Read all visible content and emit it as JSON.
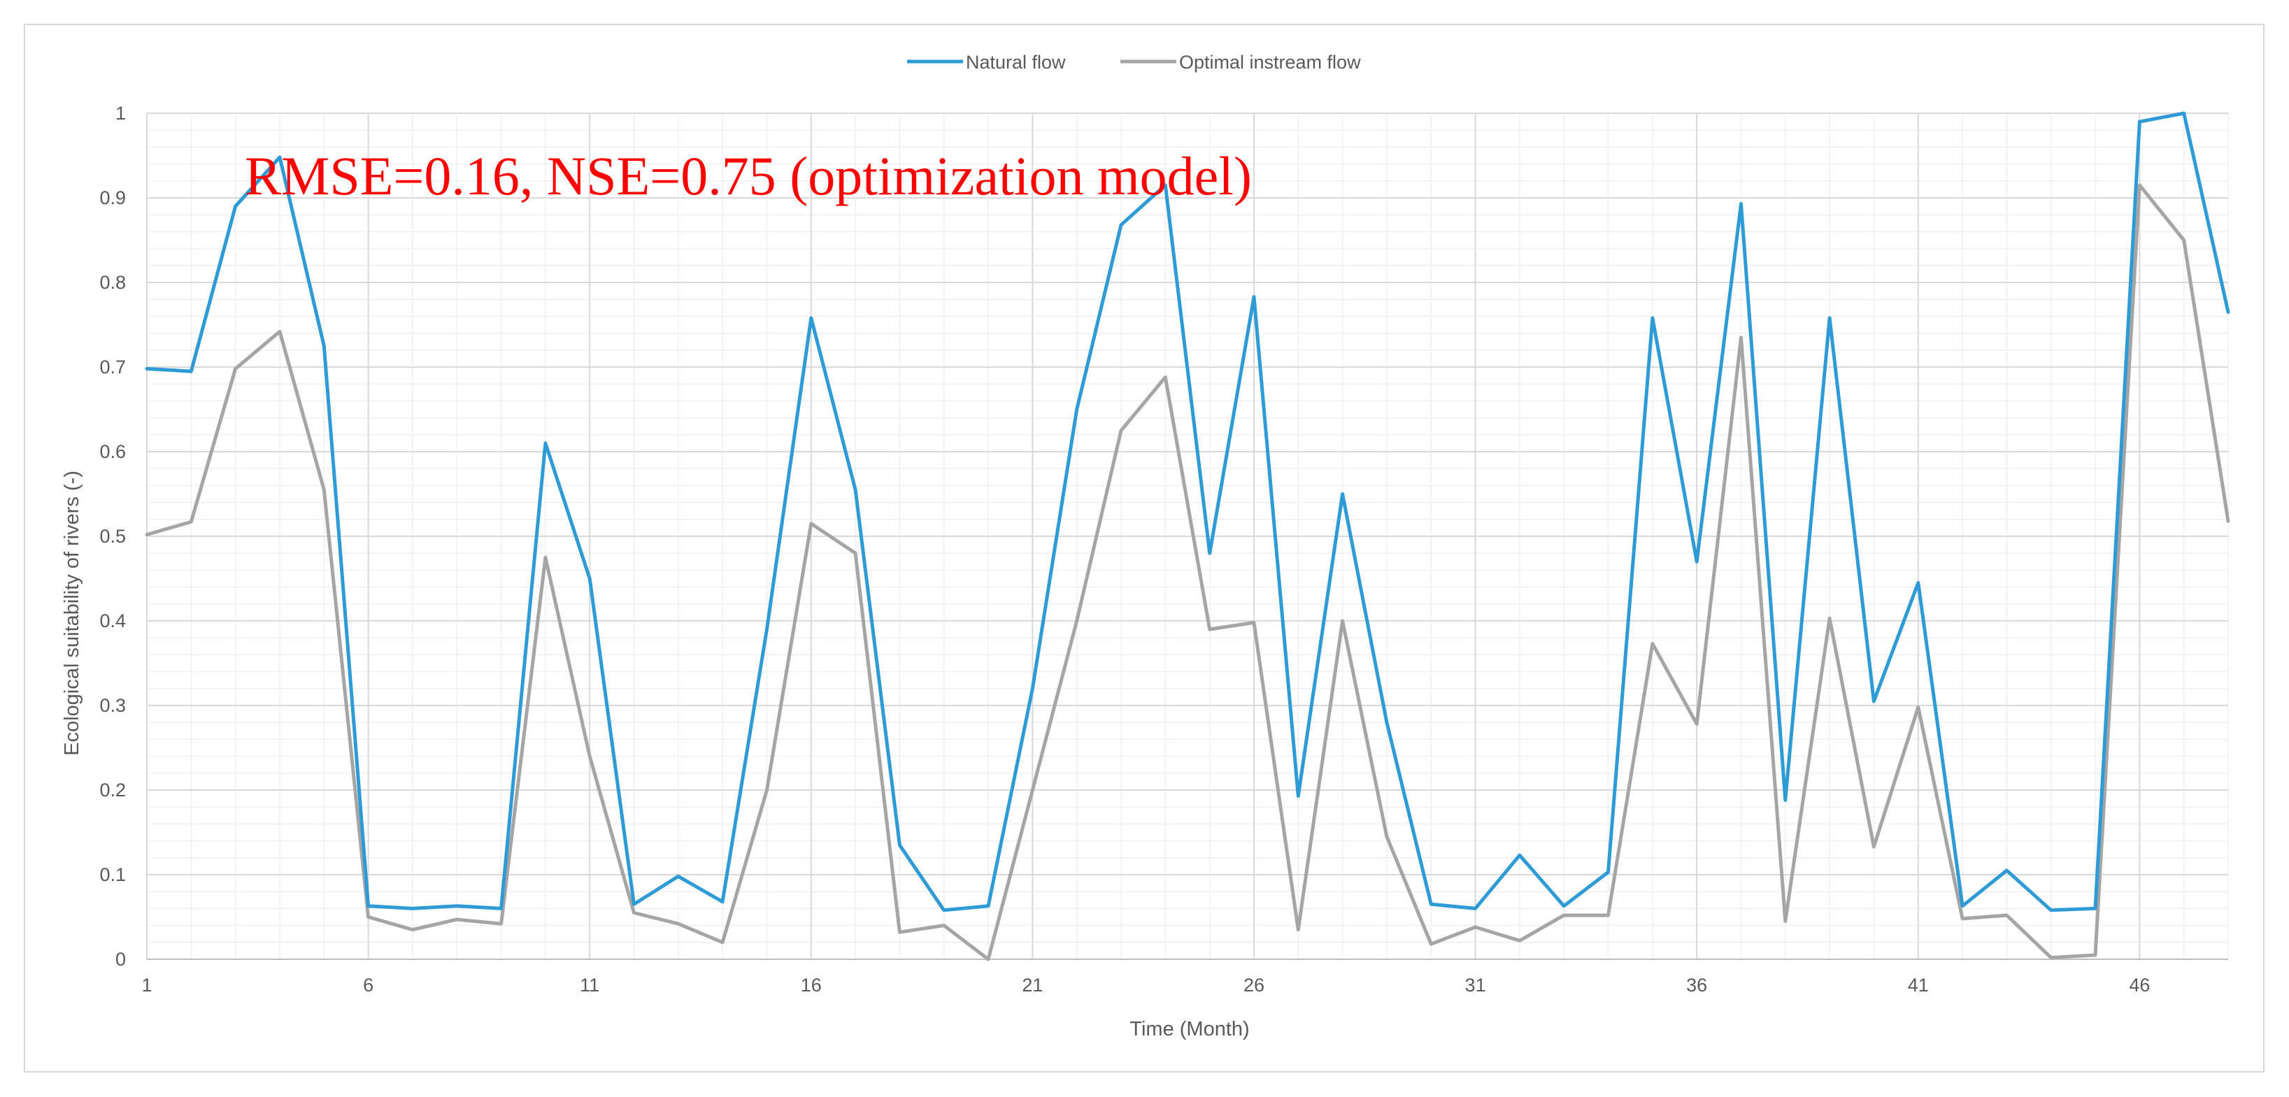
{
  "chart_data": {
    "type": "line",
    "title": "",
    "xlabel": "Time (Month)",
    "ylabel": "Ecological suitability of rivers (-)",
    "ylim": [
      0,
      1
    ],
    "xlim": [
      1,
      48
    ],
    "y_ticks": [
      "0",
      "0.1",
      "0.2",
      "0.3",
      "0.4",
      "0.5",
      "0.6",
      "0.7",
      "0.8",
      "0.9",
      "1"
    ],
    "x_ticks": [
      "1",
      "6",
      "11",
      "16",
      "21",
      "26",
      "31",
      "36",
      "41",
      "46"
    ],
    "grid": true,
    "legend_position": "top-center",
    "annotation": "RMSE=0.16, NSE=0.75 (optimization model)",
    "annotation_color": "#ff0000",
    "x": [
      1,
      2,
      3,
      4,
      5,
      6,
      7,
      8,
      9,
      10,
      11,
      12,
      13,
      14,
      15,
      16,
      17,
      18,
      19,
      20,
      21,
      22,
      23,
      24,
      25,
      26,
      27,
      28,
      29,
      30,
      31,
      32,
      33,
      34,
      35,
      36,
      37,
      38,
      39,
      40,
      41,
      42,
      43,
      44,
      45,
      46,
      47,
      48
    ],
    "series": [
      {
        "name": "Natural flow",
        "color": "#2e9bd6",
        "values": [
          0.698,
          0.695,
          0.89,
          0.948,
          0.725,
          0.063,
          0.06,
          0.063,
          0.06,
          0.61,
          0.45,
          0.065,
          0.098,
          0.068,
          0.39,
          0.758,
          0.555,
          0.135,
          0.058,
          0.063,
          0.32,
          0.65,
          0.868,
          0.915,
          0.48,
          0.783,
          0.193,
          0.55,
          0.28,
          0.065,
          0.06,
          0.123,
          0.063,
          0.103,
          0.758,
          0.47,
          0.893,
          0.188,
          0.758,
          0.305,
          0.445,
          0.063,
          0.105,
          0.058,
          0.06,
          0.99,
          1.0,
          0.765
        ]
      },
      {
        "name": "Optimal instream flow",
        "color": "#a5a5a5",
        "values": [
          0.502,
          0.517,
          0.698,
          0.742,
          0.555,
          0.05,
          0.035,
          0.047,
          0.042,
          0.475,
          0.24,
          0.055,
          0.042,
          0.02,
          0.2,
          0.515,
          0.48,
          0.032,
          0.04,
          0.0,
          0.2,
          0.4,
          0.625,
          0.688,
          0.39,
          0.398,
          0.035,
          0.4,
          0.145,
          0.018,
          0.038,
          0.022,
          0.052,
          0.052,
          0.373,
          0.278,
          0.735,
          0.045,
          0.403,
          0.133,
          0.298,
          0.048,
          0.052,
          0.002,
          0.005,
          0.915,
          0.85,
          0.518
        ]
      }
    ]
  }
}
